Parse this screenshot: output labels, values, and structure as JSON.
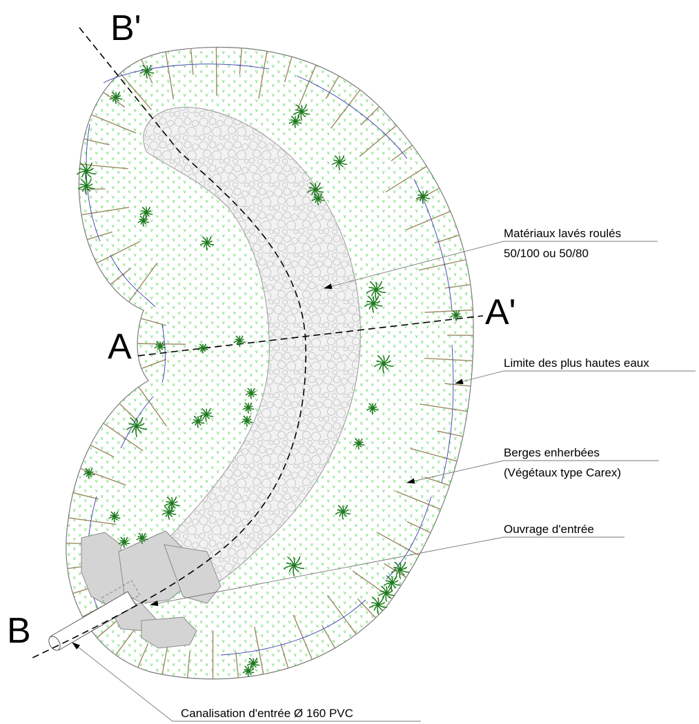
{
  "sections": {
    "a_left": "A",
    "a_right": "A'",
    "b_bottom": "B",
    "b_top": "B'"
  },
  "annotations": {
    "materiaux_line1": "Matériaux lavés roulés",
    "materiaux_line2": "50/100 ou 50/80",
    "limite": "Limite des plus hautes eaux",
    "berges_line1": "Berges enherbées",
    "berges_line2": "(Végétaux type Carex)",
    "ouvrage": "Ouvrage d'entrée",
    "canalisation": "Canalisation d'entrée Ø 160 PVC"
  },
  "colors": {
    "grass_dots": "#3fcf3f",
    "plant": "#1f7a1f",
    "slope_hatch": "#9a8a62",
    "water_limit": "#3a3ab0",
    "gravel_fill": "#f2f2f2",
    "inlet_stone": "#d4d4d4"
  }
}
